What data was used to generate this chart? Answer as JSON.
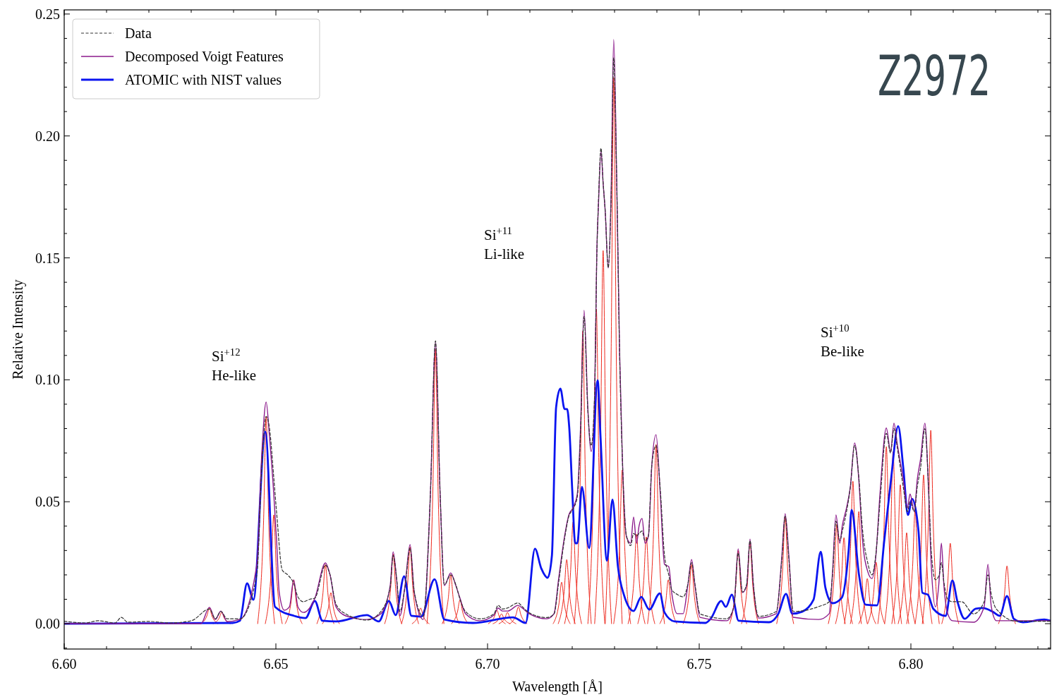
{
  "chart_data": {
    "type": "line",
    "xlabel": "Wavelength [Å]",
    "ylabel": "Relative Intensity",
    "xlim": [
      6.6,
      6.833
    ],
    "ylim": [
      -0.0104,
      0.2517
    ],
    "xticks": [
      {
        "value": 6.6,
        "label": "6.60"
      },
      {
        "value": 6.61,
        "label": null
      },
      {
        "value": 6.62,
        "label": null
      },
      {
        "value": 6.63,
        "label": null
      },
      {
        "value": 6.64,
        "label": null
      },
      {
        "value": 6.65,
        "label": "6.65"
      },
      {
        "value": 6.66,
        "label": null
      },
      {
        "value": 6.67,
        "label": null
      },
      {
        "value": 6.68,
        "label": null
      },
      {
        "value": 6.69,
        "label": null
      },
      {
        "value": 6.7,
        "label": "6.70"
      },
      {
        "value": 6.71,
        "label": null
      },
      {
        "value": 6.72,
        "label": null
      },
      {
        "value": 6.73,
        "label": null
      },
      {
        "value": 6.74,
        "label": null
      },
      {
        "value": 6.75,
        "label": "6.75"
      },
      {
        "value": 6.76,
        "label": null
      },
      {
        "value": 6.77,
        "label": null
      },
      {
        "value": 6.78,
        "label": null
      },
      {
        "value": 6.79,
        "label": null
      },
      {
        "value": 6.8,
        "label": "6.80"
      },
      {
        "value": 6.81,
        "label": null
      },
      {
        "value": 6.82,
        "label": null
      },
      {
        "value": 6.83,
        "label": null
      }
    ],
    "yticks": [
      {
        "value": -0.01,
        "label": null
      },
      {
        "value": 0,
        "label": "0.00"
      },
      {
        "value": 0.01,
        "label": null
      },
      {
        "value": 0.02,
        "label": null
      },
      {
        "value": 0.03,
        "label": null
      },
      {
        "value": 0.04,
        "label": null
      },
      {
        "value": 0.05,
        "label": "0.05"
      },
      {
        "value": 0.06,
        "label": null
      },
      {
        "value": 0.07,
        "label": null
      },
      {
        "value": 0.08,
        "label": null
      },
      {
        "value": 0.09,
        "label": null
      },
      {
        "value": 0.1,
        "label": "0.10"
      },
      {
        "value": 0.11,
        "label": null
      },
      {
        "value": 0.12,
        "label": null
      },
      {
        "value": 0.13,
        "label": null
      },
      {
        "value": 0.14,
        "label": null
      },
      {
        "value": 0.15,
        "label": "0.15"
      },
      {
        "value": 0.16,
        "label": null
      },
      {
        "value": 0.17,
        "label": null
      },
      {
        "value": 0.18,
        "label": null
      },
      {
        "value": 0.19,
        "label": null
      },
      {
        "value": 0.2,
        "label": "0.20"
      },
      {
        "value": 0.21,
        "label": null
      },
      {
        "value": 0.22,
        "label": null
      },
      {
        "value": 0.23,
        "label": null
      },
      {
        "value": 0.24,
        "label": null
      },
      {
        "value": 0.25,
        "label": "0.25"
      }
    ],
    "grid": false,
    "legend": "top left",
    "annotations": [
      "Z2972",
      "Si$^{+12}$\nHe-like",
      "Si$^{+11}$\nLi-like",
      "Si$^{+10}$\nBe-like"
    ],
    "series": [
      {
        "name": "Data",
        "color": "#333333",
        "line_style": "dashed",
        "x": [
          6.6,
          6.605,
          6.608,
          6.612,
          6.6135,
          6.615,
          6.62,
          6.625,
          6.63,
          6.6343,
          6.6357,
          6.637,
          6.6385,
          6.6415,
          6.6455,
          6.6467,
          6.6477,
          6.6485,
          6.6495,
          6.6502,
          6.6515,
          6.6528,
          6.6542,
          6.6552,
          6.6565,
          6.658,
          6.6592,
          6.6617,
          6.6628,
          6.6642,
          6.6665,
          6.6715,
          6.6748,
          6.677,
          6.6777,
          6.6785,
          6.6793,
          6.6805,
          6.6817,
          6.6827,
          6.6848,
          6.6865,
          6.6877,
          6.6888,
          6.6898,
          6.6913,
          6.6925,
          6.6935,
          6.6948,
          6.6982,
          6.7015,
          6.7025,
          6.7035,
          6.7048,
          6.7072,
          6.7082,
          6.7098,
          6.714,
          6.7157,
          6.7168,
          6.7182,
          6.7192,
          6.7202,
          6.7212,
          6.722,
          6.7228,
          6.7237,
          6.7245,
          6.7253,
          6.7258,
          6.7262,
          6.7268,
          6.7273,
          6.7278,
          6.7285,
          6.7292,
          6.7298,
          6.7305,
          6.7312,
          6.7318,
          6.7328,
          6.7338,
          6.7345,
          6.7352,
          6.7358,
          6.7365,
          6.7372,
          6.738,
          6.7388,
          6.7398,
          6.7408,
          6.7418,
          6.7428,
          6.7435,
          6.7448,
          6.7462,
          6.7473,
          6.7482,
          6.749,
          6.7502,
          6.7565,
          6.7582,
          6.7592,
          6.7602,
          6.7612,
          6.762,
          6.7628,
          6.764,
          6.7682,
          6.7695,
          6.7703,
          6.7712,
          6.7722,
          6.7782,
          6.7807,
          6.7815,
          6.7823,
          6.7832,
          6.7838,
          6.7848,
          6.7857,
          6.7867,
          6.7877,
          6.7885,
          6.7898,
          6.7908,
          6.7917,
          6.7927,
          6.7942,
          6.7952,
          6.796,
          6.7968,
          6.7982,
          6.7992,
          6.7998,
          6.8008,
          6.8015,
          6.8023,
          6.8033,
          6.8042,
          6.8048,
          6.8058,
          6.8067,
          6.8072,
          6.8078,
          6.8087,
          6.8098,
          6.812,
          6.8148,
          6.8173,
          6.8182,
          6.819,
          6.8202,
          6.825,
          6.83,
          6.833
        ],
        "values": [
          0.001,
          0.0003,
          0.0012,
          0.0003,
          0.0026,
          0.0006,
          0.0009,
          0.0003,
          0.0012,
          0.006,
          0.002,
          0.005,
          0.002,
          0.002,
          0.02,
          0.065,
          0.085,
          0.08,
          0.06,
          0.045,
          0.022,
          0.02,
          0.0165,
          0.011,
          0.009,
          0.01,
          0.0105,
          0.024,
          0.02,
          0.008,
          0.004,
          0.0015,
          0.005,
          0.015,
          0.028,
          0.019,
          0.005,
          0.015,
          0.031,
          0.013,
          0.003,
          0.053,
          0.116,
          0.053,
          0.016,
          0.02,
          0.016,
          0.01,
          0.005,
          0.002,
          0.004,
          0.0075,
          0.006,
          0.0065,
          0.0085,
          0.007,
          0.0045,
          0.0025,
          0.004,
          0.017,
          0.035,
          0.044,
          0.047,
          0.052,
          0.08,
          0.126,
          0.087,
          0.073,
          0.094,
          0.15,
          0.173,
          0.195,
          0.181,
          0.169,
          0.146,
          0.175,
          0.232,
          0.182,
          0.11,
          0.07,
          0.036,
          0.032,
          0.037,
          0.036,
          0.037,
          0.038,
          0.034,
          0.036,
          0.065,
          0.073,
          0.055,
          0.028,
          0.02,
          0.014,
          0.012,
          0.011,
          0.016,
          0.025,
          0.016,
          0.004,
          0.002,
          0.007,
          0.029,
          0.013,
          0.016,
          0.034,
          0.016,
          0.003,
          0.005,
          0.026,
          0.044,
          0.026,
          0.005,
          0.007,
          0.009,
          0.02,
          0.042,
          0.034,
          0.038,
          0.046,
          0.056,
          0.073,
          0.06,
          0.04,
          0.025,
          0.02,
          0.028,
          0.05,
          0.078,
          0.07,
          0.08,
          0.072,
          0.056,
          0.046,
          0.05,
          0.046,
          0.056,
          0.064,
          0.08,
          0.055,
          0.03,
          0.018,
          0.02,
          0.025,
          0.017,
          0.01,
          0.009,
          0.009,
          0.004,
          0.009,
          0.02,
          0.012,
          0.006,
          0.001,
          0.001,
          0.001
        ]
      },
      {
        "name": "Decomposed Voigt Features",
        "color": "#8b1a8b",
        "x": [
          6.6,
          6.6323,
          6.6343,
          6.6357,
          6.637,
          6.6385,
          6.6415,
          6.6455,
          6.6467,
          6.6477,
          6.6485,
          6.6495,
          6.6502,
          6.6508,
          6.652,
          6.6532,
          6.6542,
          6.6552,
          6.6565,
          6.6592,
          6.6617,
          6.6628,
          6.6642,
          6.6665,
          6.6715,
          6.6748,
          6.677,
          6.6777,
          6.6785,
          6.6793,
          6.6805,
          6.6817,
          6.6827,
          6.6848,
          6.6865,
          6.6877,
          6.6888,
          6.6898,
          6.6913,
          6.6925,
          6.6935,
          6.6948,
          6.6982,
          6.7015,
          6.7025,
          6.7035,
          6.7048,
          6.7072,
          6.7082,
          6.7098,
          6.714,
          6.7157,
          6.7168,
          6.7182,
          6.7192,
          6.7202,
          6.7212,
          6.722,
          6.7228,
          6.7237,
          6.7245,
          6.7253,
          6.7258,
          6.7262,
          6.7268,
          6.7273,
          6.7278,
          6.7285,
          6.7292,
          6.7298,
          6.7305,
          6.7312,
          6.7318,
          6.7328,
          6.7338,
          6.7345,
          6.7352,
          6.7358,
          6.7365,
          6.7372,
          6.738,
          6.7388,
          6.7398,
          6.7408,
          6.7418,
          6.7428,
          6.7435,
          6.7448,
          6.7462,
          6.7473,
          6.7482,
          6.749,
          6.7502,
          6.7565,
          6.7582,
          6.7592,
          6.7602,
          6.7612,
          6.762,
          6.7628,
          6.764,
          6.7682,
          6.7695,
          6.7703,
          6.7712,
          6.7722,
          6.7782,
          6.7807,
          6.7815,
          6.7823,
          6.7832,
          6.7838,
          6.7848,
          6.7857,
          6.7867,
          6.7877,
          6.7885,
          6.7898,
          6.7908,
          6.7917,
          6.7927,
          6.7942,
          6.7952,
          6.796,
          6.7968,
          6.7982,
          6.7992,
          6.7998,
          6.8008,
          6.8015,
          6.8023,
          6.8033,
          6.8042,
          6.8048,
          6.8058,
          6.8067,
          6.8072,
          6.8078,
          6.8087,
          6.8098,
          6.8148,
          6.8173,
          6.8182,
          6.819,
          6.8202,
          6.833
        ],
        "values": [
          0,
          0,
          0.0067,
          0.0017,
          0.0052,
          0.0009,
          0.0017,
          0.0243,
          0.0706,
          0.0909,
          0.0764,
          0.0532,
          0.033,
          0.0127,
          0.0055,
          0.0069,
          0.0179,
          0.0069,
          0.0046,
          0.0104,
          0.0249,
          0.02,
          0.0069,
          0.0032,
          0.0017,
          0.0041,
          0.0156,
          0.0295,
          0.0185,
          0.0032,
          0.0156,
          0.0324,
          0.0127,
          0.0017,
          0.0532,
          0.1152,
          0.0532,
          0.0156,
          0.0208,
          0.0156,
          0.0104,
          0.0041,
          0.0012,
          0.0035,
          0.0064,
          0.0052,
          0.0052,
          0.0075,
          0.0064,
          0.0041,
          0.002,
          0.0041,
          0.0185,
          0.0359,
          0.0446,
          0.0475,
          0.0532,
          0.0822,
          0.1285,
          0.088,
          0.0706,
          0.0938,
          0.1516,
          0.1719,
          0.1936,
          0.1806,
          0.169,
          0.1458,
          0.1777,
          0.2396,
          0.1834,
          0.1111,
          0.0706,
          0.0359,
          0.033,
          0.0437,
          0.033,
          0.0402,
          0.0431,
          0.033,
          0.0359,
          0.0648,
          0.0775,
          0.0532,
          0.0243,
          0.0234,
          0.0127,
          0.0041,
          0.0041,
          0.0156,
          0.0263,
          0.0156,
          0.0026,
          0.0012,
          0.0069,
          0.0307,
          0.0127,
          0.0156,
          0.0347,
          0.0156,
          0.0023,
          0.0041,
          0.0272,
          0.0451,
          0.0272,
          0.0026,
          0.0017,
          0.0041,
          0.0214,
          0.0446,
          0.033,
          0.0402,
          0.0475,
          0.0561,
          0.0741,
          0.059,
          0.0359,
          0.0214,
          0.0185,
          0.0272,
          0.0532,
          0.0802,
          0.0706,
          0.0822,
          0.0735,
          0.059,
          0.0475,
          0.0532,
          0.046,
          0.059,
          0.0677,
          0.0822,
          0.0532,
          0.0243,
          0.0069,
          0.0185,
          0.033,
          0.0156,
          0.0041,
          0.0012,
          0.0006,
          0.0069,
          0.0243,
          0.0069,
          0.0012,
          0.0012
        ]
      },
      {
        "name": "ATOMIC with NIST values",
        "color": "#0a14f0",
        "x": [
          6.6,
          6.6398,
          6.6415,
          6.6432,
          6.6447,
          6.6475,
          6.6498,
          6.6543,
          6.657,
          6.6592,
          6.661,
          6.6643,
          6.6715,
          6.6743,
          6.6767,
          6.6783,
          6.6803,
          6.682,
          6.6843,
          6.6875,
          6.6898,
          6.6965,
          6.706,
          6.709,
          6.7112,
          6.7127,
          6.7142,
          6.7152,
          6.7162,
          6.7172,
          6.7182,
          6.7188,
          6.7193,
          6.72,
          6.7207,
          6.7212,
          6.7223,
          6.724,
          6.726,
          6.7267,
          6.7282,
          6.7295,
          6.7308,
          6.7322,
          6.7345,
          6.7363,
          6.7382,
          6.7407,
          6.7418,
          6.7442,
          6.7515,
          6.7527,
          6.7552,
          6.7563,
          6.7577,
          6.7593,
          6.7665,
          6.7687,
          6.7705,
          6.772,
          6.7743,
          6.777,
          6.7787,
          6.7798,
          6.7815,
          6.7837,
          6.7853,
          6.786,
          6.7877,
          6.7893,
          6.792,
          6.7937,
          6.7953,
          6.797,
          6.7982,
          6.7993,
          6.8003,
          6.8018,
          6.8027,
          6.804,
          6.8053,
          6.8082,
          6.8098,
          6.811,
          6.8127,
          6.8153,
          6.817,
          6.8193,
          6.821,
          6.8227,
          6.8243,
          6.8265,
          6.8315,
          6.833
        ],
        "values": [
          0,
          0.0003,
          0.0012,
          0.0165,
          0.0098,
          0.0787,
          0.0069,
          0.0032,
          0.0023,
          0.0093,
          0.0012,
          0.0009,
          0.0035,
          0.0009,
          0.0093,
          0.0035,
          0.0194,
          0.0032,
          0.0029,
          0.0182,
          0.0017,
          0.0003,
          0.0026,
          0.0003,
          0.0307,
          0.0226,
          0.0188,
          0.0278,
          0.0888,
          0.0964,
          0.088,
          0.088,
          0.0804,
          0.055,
          0.033,
          0.033,
          0.0561,
          0.031,
          0.0998,
          0.0761,
          0.0258,
          0.0509,
          0.0234,
          0.0119,
          0.0052,
          0.011,
          0.0058,
          0.0124,
          0.0046,
          0.0009,
          0.0003,
          0.002,
          0.0093,
          0.0069,
          0.0119,
          0.0012,
          0.0006,
          0.0041,
          0.0122,
          0.0041,
          0.0049,
          0.0098,
          0.0295,
          0.0148,
          0.0084,
          0.0107,
          0.0301,
          0.0466,
          0.0205,
          0.0078,
          0.0075,
          0.0339,
          0.059,
          0.081,
          0.0639,
          0.0446,
          0.0512,
          0.0379,
          0.0127,
          0.0119,
          0.0061,
          0.0032,
          0.0177,
          0.009,
          0.002,
          0.0061,
          0.0064,
          0.0049,
          0.0032,
          0.0113,
          0.002,
          0.0006,
          0.0017,
          0.0012
        ]
      },
      {
        "color": "#ee2a1f",
        "x": [
          6.6323,
          6.6337,
          6.6343,
          6.6349,
          6.6363
        ],
        "values": [
          0,
          0.0032,
          0.0064,
          0.0032,
          0
        ]
      },
      {
        "color": "#ee2a1f",
        "x": [
          6.6352,
          6.6366,
          6.6372,
          6.6378,
          6.6392
        ],
        "values": [
          0,
          0.0023,
          0.0046,
          0.0023,
          0
        ]
      },
      {
        "color": "#ee2a1f",
        "x": [
          6.6457,
          6.6471,
          6.6477,
          6.6483,
          6.6497
        ],
        "values": [
          0,
          0.0425,
          0.085,
          0.0425,
          0
        ]
      },
      {
        "color": "#ee2a1f",
        "x": [
          6.6475,
          6.6489,
          6.6495,
          6.6501,
          6.6515
        ],
        "values": [
          0,
          0.0223,
          0.0446,
          0.0223,
          0
        ]
      },
      {
        "color": "#ee2a1f",
        "x": [
          6.6522,
          6.6536,
          6.6542,
          6.6548,
          6.6562
        ],
        "values": [
          0,
          0.009,
          0.018,
          0.009,
          0
        ]
      },
      {
        "color": "#ee2a1f",
        "x": [
          6.6597,
          6.6611,
          6.6617,
          6.6623,
          6.6637
        ],
        "values": [
          0,
          0.0122,
          0.0243,
          0.0122,
          0
        ]
      },
      {
        "color": "#ee2a1f",
        "x": [
          6.661,
          6.6624,
          6.663,
          6.6636,
          6.665
        ],
        "values": [
          0,
          0.0064,
          0.0127,
          0.0064,
          0
        ]
      },
      {
        "color": "#ee2a1f",
        "x": [
          6.6757,
          6.6771,
          6.6777,
          6.6783,
          6.6797
        ],
        "values": [
          0,
          0.0143,
          0.0286,
          0.0143,
          0
        ]
      },
      {
        "color": "#ee2a1f",
        "x": [
          6.6797,
          6.6811,
          6.6817,
          6.6823,
          6.6837
        ],
        "values": [
          0,
          0.0158,
          0.0315,
          0.0158,
          0
        ]
      },
      {
        "color": "#ee2a1f",
        "x": [
          6.6822,
          6.6836,
          6.6842,
          6.6848,
          6.6862
        ],
        "values": [
          0,
          0.0032,
          0.0064,
          0.0032,
          0
        ]
      },
      {
        "color": "#ee2a1f",
        "x": [
          6.6857,
          6.6871,
          6.6877,
          6.6883,
          6.6897
        ],
        "values": [
          0,
          0.0563,
          0.1126,
          0.0563,
          0
        ]
      },
      {
        "color": "#ee2a1f",
        "x": [
          6.6893,
          6.6907,
          6.6913,
          6.6919,
          6.6933
        ],
        "values": [
          0,
          0.01,
          0.02,
          0.01,
          0
        ]
      },
      {
        "color": "#ee2a1f",
        "x": [
          6.6915,
          6.6929,
          6.6935,
          6.6941,
          6.6955
        ],
        "values": [
          0,
          0.0049,
          0.0098,
          0.0049,
          0
        ]
      },
      {
        "color": "#ee2a1f",
        "x": [
          6.7002,
          6.7016,
          6.7022,
          6.7028,
          6.7042
        ],
        "values": [
          0,
          0.0028,
          0.0055,
          0.0028,
          0
        ]
      },
      {
        "color": "#ee2a1f",
        "x": [
          6.7013,
          6.7027,
          6.7033,
          6.7039,
          6.7053
        ],
        "values": [
          0,
          0.002,
          0.004,
          0.002,
          0
        ]
      },
      {
        "color": "#ee2a1f",
        "x": [
          6.7027,
          6.7041,
          6.7047,
          6.7053,
          6.7067
        ],
        "values": [
          0,
          0.0023,
          0.0046,
          0.0023,
          0
        ]
      },
      {
        "color": "#ee2a1f",
        "x": [
          6.7053,
          6.7067,
          6.7073,
          6.7079,
          6.7093
        ],
        "values": [
          0,
          0.0035,
          0.0069,
          0.0035,
          0
        ]
      },
      {
        "color": "#ee2a1f",
        "x": [
          6.7155,
          6.7169,
          6.7175,
          6.7181,
          6.7195
        ],
        "values": [
          0,
          0.0085,
          0.017,
          0.0085,
          0
        ]
      },
      {
        "color": "#ee2a1f",
        "x": [
          6.7167,
          6.7181,
          6.7187,
          6.7193,
          6.7207
        ],
        "values": [
          0,
          0.0132,
          0.0263,
          0.0132,
          0
        ]
      },
      {
        "color": "#ee2a1f",
        "x": [
          6.7182,
          6.7196,
          6.7202,
          6.7208,
          6.7222
        ],
        "values": [
          0,
          0.0209,
          0.0417,
          0.0209,
          0
        ]
      },
      {
        "color": "#ee2a1f",
        "x": [
          6.7205,
          6.7219,
          6.7225,
          6.7231,
          6.7245
        ],
        "values": [
          0,
          0.06,
          0.12,
          0.06,
          0
        ]
      },
      {
        "color": "#ee2a1f",
        "x": [
          6.7237,
          6.7251,
          6.7257,
          6.7263,
          6.7277
        ],
        "values": [
          0,
          0.0645,
          0.129,
          0.0645,
          0
        ]
      },
      {
        "color": "#ee2a1f",
        "x": [
          6.7253,
          6.7267,
          6.7273,
          6.7279,
          6.7293
        ],
        "values": [
          0,
          0.0765,
          0.153,
          0.0765,
          0
        ]
      },
      {
        "color": "#ee2a1f",
        "x": [
          6.7278,
          6.7292,
          6.7298,
          6.7304,
          6.7318
        ],
        "values": [
          0,
          0.112,
          0.224,
          0.112,
          0
        ]
      },
      {
        "color": "#ee2a1f",
        "x": [
          6.7298,
          6.7312,
          6.7318,
          6.7324,
          6.7338
        ],
        "values": [
          0,
          0.0315,
          0.063,
          0.0315,
          0
        ]
      },
      {
        "color": "#ee2a1f",
        "x": [
          6.7332,
          6.7346,
          6.7352,
          6.7358,
          6.7372
        ],
        "values": [
          0,
          0.0184,
          0.0367,
          0.0184,
          0
        ]
      },
      {
        "color": "#ee2a1f",
        "x": [
          6.7355,
          6.7369,
          6.7375,
          6.7381,
          6.7395
        ],
        "values": [
          0,
          0.0178,
          0.0356,
          0.0178,
          0
        ]
      },
      {
        "color": "#ee2a1f",
        "x": [
          6.7378,
          6.7392,
          6.7398,
          6.7404,
          6.7418
        ],
        "values": [
          0,
          0.0368,
          0.0735,
          0.0368,
          0
        ]
      },
      {
        "color": "#ee2a1f",
        "x": [
          6.7407,
          6.7421,
          6.7427,
          6.7433,
          6.7447
        ],
        "values": [
          0,
          0.009,
          0.018,
          0.009,
          0
        ]
      },
      {
        "color": "#ee2a1f",
        "x": [
          6.7462,
          6.7476,
          6.7482,
          6.7488,
          6.7502
        ],
        "values": [
          0,
          0.0122,
          0.0243,
          0.0122,
          0
        ]
      },
      {
        "color": "#ee2a1f",
        "x": [
          6.7572,
          6.7586,
          6.7592,
          6.7598,
          6.7612
        ],
        "values": [
          0,
          0.015,
          0.03,
          0.015,
          0
        ]
      },
      {
        "color": "#ee2a1f",
        "x": [
          6.76,
          6.7614,
          6.762,
          6.7626,
          6.764
        ],
        "values": [
          0,
          0.0168,
          0.0336,
          0.0168,
          0
        ]
      },
      {
        "color": "#ee2a1f",
        "x": [
          6.7683,
          6.7697,
          6.7703,
          6.7709,
          6.7723
        ],
        "values": [
          0,
          0.022,
          0.044,
          0.022,
          0
        ]
      },
      {
        "color": "#ee2a1f",
        "x": [
          6.7805,
          6.7819,
          6.7825,
          6.7831,
          6.7845
        ],
        "values": [
          0,
          0.0204,
          0.0408,
          0.0204,
          0
        ]
      },
      {
        "color": "#ee2a1f",
        "x": [
          6.7822,
          6.7836,
          6.7842,
          6.7848,
          6.7862
        ],
        "values": [
          0,
          0.0177,
          0.0353,
          0.0177,
          0
        ]
      },
      {
        "color": "#ee2a1f",
        "x": [
          6.7843,
          6.7857,
          6.7863,
          6.7869,
          6.7883
        ],
        "values": [
          0,
          0.0292,
          0.0584,
          0.0292,
          0
        ]
      },
      {
        "color": "#ee2a1f",
        "x": [
          6.7857,
          6.7871,
          6.7877,
          6.7883,
          6.7897
        ],
        "values": [
          0,
          0.023,
          0.046,
          0.023,
          0
        ]
      },
      {
        "color": "#ee2a1f",
        "x": [
          6.7877,
          6.7891,
          6.7897,
          6.7903,
          6.7917
        ],
        "values": [
          0,
          0.0093,
          0.0185,
          0.0093,
          0
        ]
      },
      {
        "color": "#ee2a1f",
        "x": [
          6.7898,
          6.7912,
          6.7918,
          6.7924,
          6.7938
        ],
        "values": [
          0,
          0.0126,
          0.0252,
          0.0126,
          0
        ]
      },
      {
        "color": "#ee2a1f",
        "x": [
          6.7922,
          6.7936,
          6.7942,
          6.7948,
          6.7962
        ],
        "values": [
          0,
          0.0363,
          0.0726,
          0.0363,
          0
        ]
      },
      {
        "color": "#ee2a1f",
        "x": [
          6.7938,
          6.7952,
          6.7958,
          6.7964,
          6.7978
        ],
        "values": [
          0,
          0.0353,
          0.0706,
          0.0353,
          0
        ]
      },
      {
        "color": "#ee2a1f",
        "x": [
          6.7955,
          6.7969,
          6.7975,
          6.7981,
          6.7995
        ],
        "values": [
          0,
          0.0285,
          0.057,
          0.0285,
          0
        ]
      },
      {
        "color": "#ee2a1f",
        "x": [
          6.797,
          6.7984,
          6.799,
          6.7996,
          6.801
        ],
        "values": [
          0,
          0.0187,
          0.0373,
          0.0187,
          0
        ]
      },
      {
        "color": "#ee2a1f",
        "x": [
          6.799,
          6.8004,
          6.801,
          6.8016,
          6.803
        ],
        "values": [
          0,
          0.0233,
          0.0466,
          0.0233,
          0
        ]
      },
      {
        "color": "#ee2a1f",
        "x": [
          6.801,
          6.8024,
          6.803,
          6.8036,
          6.805
        ],
        "values": [
          0,
          0.0305,
          0.061,
          0.0305,
          0
        ]
      },
      {
        "color": "#ee2a1f",
        "x": [
          6.8027,
          6.8041,
          6.8047,
          6.8053,
          6.8067
        ],
        "values": [
          0,
          0.0397,
          0.0793,
          0.0397,
          0
        ]
      },
      {
        "color": "#ee2a1f",
        "x": [
          6.8073,
          6.8087,
          6.8093,
          6.8099,
          6.8113
        ],
        "values": [
          0,
          0.0165,
          0.033,
          0.0165,
          0
        ]
      },
      {
        "color": "#ee2a1f",
        "x": [
          6.8207,
          6.8221,
          6.8227,
          6.8233,
          6.8247
        ],
        "values": [
          0,
          0.0119,
          0.0237,
          0.0119,
          0
        ]
      }
    ]
  }
}
